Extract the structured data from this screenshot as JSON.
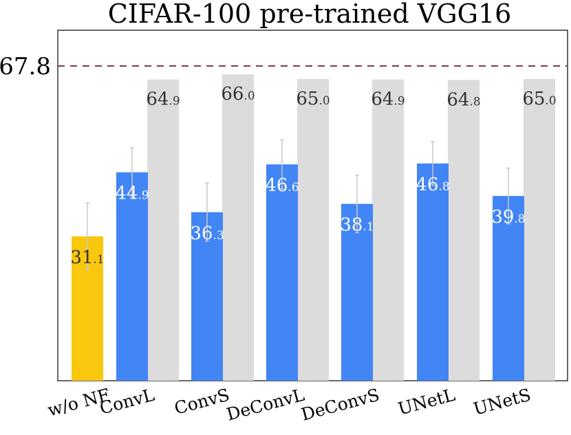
{
  "chart_data": {
    "type": "bar",
    "title": "CIFAR-100 pre-trained VGG16",
    "categories": [
      "w/o NF",
      "ConvL",
      "ConvS",
      "DeConvL",
      "DeConvS",
      "UNetL",
      "UNetS"
    ],
    "series": [
      {
        "values": [
          31.1,
          44.9,
          36.3,
          46.6,
          38.1,
          46.8,
          39.8
        ],
        "label_int": [
          "31",
          "44",
          "36",
          "46",
          "38",
          "46",
          "39"
        ],
        "label_dec": [
          ".1",
          ".9",
          ".3",
          ".6",
          ".1",
          ".8",
          ".8"
        ],
        "error": [
          7.2,
          5.3,
          6.3,
          5.3,
          6.2,
          4.7,
          6.0
        ]
      },
      {
        "values": [
          null,
          64.9,
          66.0,
          65.0,
          64.9,
          64.8,
          65.0
        ],
        "label_int": [
          null,
          "64",
          "66",
          "65",
          "64",
          "64",
          "65"
        ],
        "label_dec": [
          null,
          ".9",
          ".0",
          ".0",
          ".9",
          ".8",
          ".0"
        ]
      }
    ],
    "reference_line": {
      "value": 67.8,
      "label": "67.8",
      "style": "dashed",
      "color": "#7a3b4a"
    },
    "ytick_labels": [
      "67.8"
    ],
    "ylim": [
      0,
      75.5
    ],
    "grid": false,
    "legend": "none",
    "colors": {
      "baseline": "#f9c80e",
      "nf_bar": "#4285f4",
      "background_bar": "#dcdcdc",
      "error_bar": "#c8c8c8",
      "label_light": "#ffffff",
      "label_dark": "#333333"
    }
  }
}
